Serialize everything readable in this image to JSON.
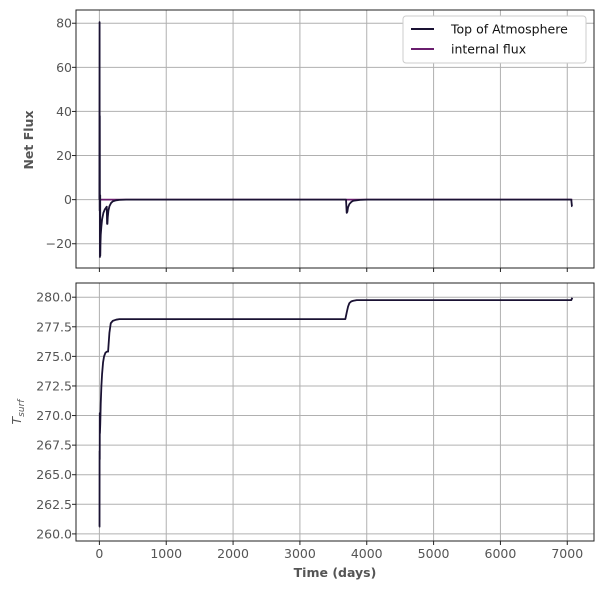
{
  "chart_data": [
    {
      "type": "line",
      "ylabel": "Net Flux",
      "xlim": [
        -350,
        7400
      ],
      "ylim": [
        -31,
        86
      ],
      "xticks": [
        0,
        1000,
        2000,
        3000,
        4000,
        5000,
        6000,
        7000
      ],
      "yticks": [
        -20,
        0,
        20,
        40,
        60,
        80
      ],
      "ytick_labels": [
        "−20",
        "0",
        "20",
        "40",
        "60",
        "80"
      ],
      "grid": true,
      "legend_position": "top-right",
      "series": [
        {
          "name": "Top of Atmosphere",
          "color": "#1a1233",
          "x": [
            0,
            3,
            4,
            6,
            8,
            10,
            12,
            13,
            14,
            16,
            20,
            30,
            40,
            60,
            80,
            100,
            110,
            115,
            120,
            125,
            135,
            150,
            175,
            200,
            250,
            300,
            400,
            600,
            1000,
            2000,
            3000,
            3650,
            3690,
            3700,
            3710,
            3720,
            3740,
            3770,
            3800,
            3900,
            4000,
            5000,
            6000,
            7000,
            7040,
            7060,
            7070,
            7075
          ],
          "y": [
            0,
            80.5,
            -5,
            38,
            -26,
            -22,
            2,
            -25.5,
            -24,
            -20,
            -16,
            -12,
            -9,
            -6,
            -4.5,
            -3.6,
            -3.2,
            -11,
            -11,
            -8,
            -5,
            -3,
            -1.5,
            -0.8,
            -0.3,
            -0.1,
            0,
            0,
            0,
            0,
            0,
            0,
            0,
            -6,
            -5.5,
            -3.5,
            -2,
            -1,
            -0.5,
            -0.1,
            0,
            0,
            0,
            0,
            0,
            0,
            -3,
            -3
          ]
        },
        {
          "name": "internal flux",
          "color": "#6a1e6e",
          "x": [
            0,
            7075
          ],
          "y": [
            0,
            0
          ]
        }
      ]
    },
    {
      "type": "line",
      "ylabel": "T_surf",
      "ylabel_main": "T",
      "ylabel_sub": "surf",
      "xlabel": "Time (days)",
      "xlim": [
        -350,
        7400
      ],
      "ylim": [
        259.4,
        281.2
      ],
      "xticks": [
        0,
        1000,
        2000,
        3000,
        4000,
        5000,
        6000,
        7000
      ],
      "yticks": [
        260.0,
        262.5,
        265.0,
        267.5,
        270.0,
        272.5,
        275.0,
        277.5,
        280.0
      ],
      "ytick_labels": [
        "260.0",
        "262.5",
        "265.0",
        "267.5",
        "270.0",
        "272.5",
        "275.0",
        "277.5",
        "280.0"
      ],
      "grid": true,
      "series": [
        {
          "name": "",
          "color": "#1a1233",
          "x": [
            0,
            2,
            3,
            5,
            6,
            8,
            10,
            13,
            16,
            20,
            30,
            40,
            55,
            70,
            90,
            110,
            130,
            150,
            170,
            200,
            250,
            300,
            400,
            800,
            1500,
            3000,
            3600,
            3680,
            3700,
            3720,
            3740,
            3770,
            3800,
            3850,
            3900,
            4000,
            5000,
            6000,
            7000,
            7060,
            7075
          ],
          "y": [
            260.6,
            260.6,
            267.0,
            266.3,
            270.2,
            268.5,
            268.8,
            269.3,
            270.0,
            271.0,
            272.5,
            273.5,
            274.5,
            275.0,
            275.3,
            275.4,
            275.4,
            277.0,
            277.8,
            278.0,
            278.1,
            278.15,
            278.15,
            278.15,
            278.15,
            278.15,
            278.15,
            278.15,
            278.7,
            279.2,
            279.5,
            279.65,
            279.7,
            279.75,
            279.75,
            279.75,
            279.75,
            279.75,
            279.75,
            279.75,
            279.95
          ]
        }
      ]
    }
  ]
}
